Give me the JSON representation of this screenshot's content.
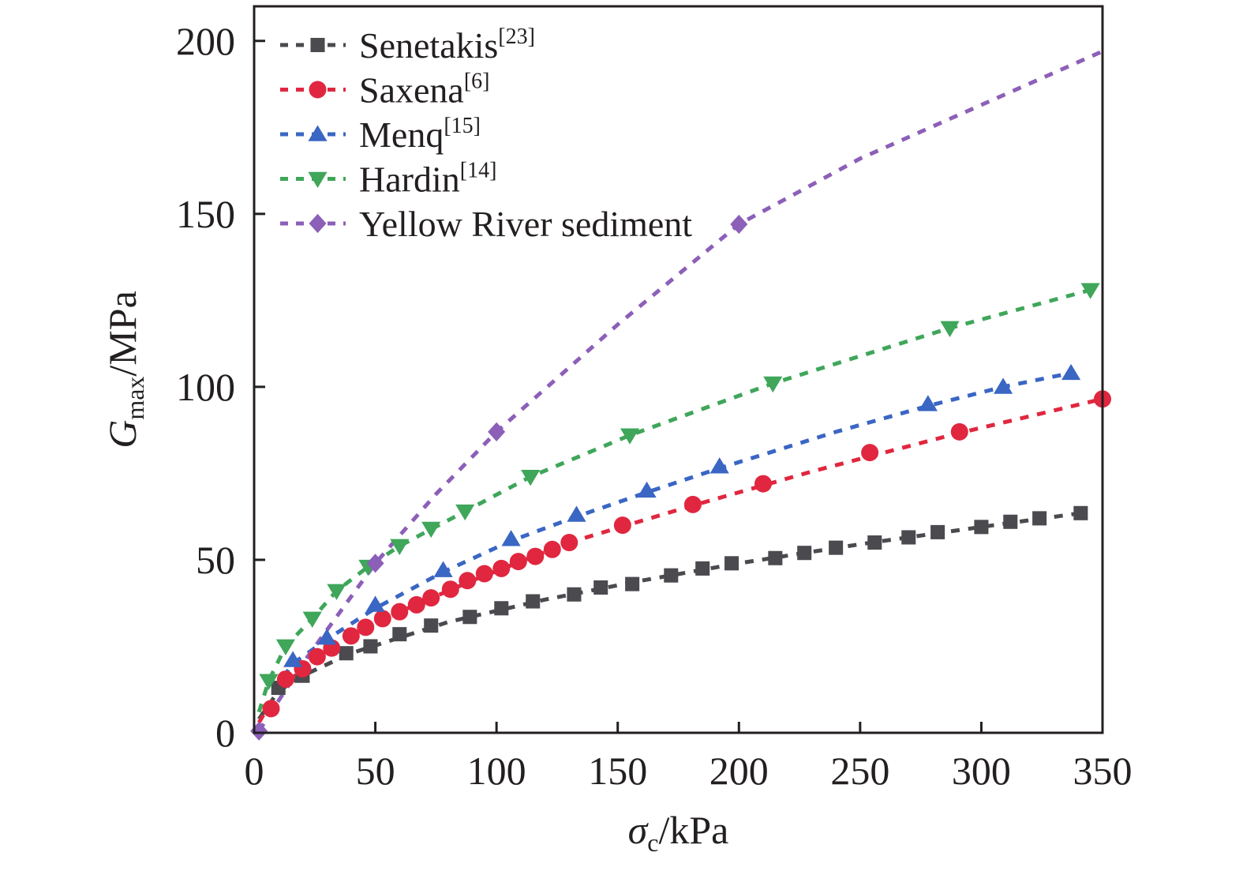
{
  "chart_data": {
    "type": "scatter",
    "title": "",
    "xlabel": {
      "symbol": "σ",
      "subscript": "c",
      "unit": "/kPa"
    },
    "ylabel": {
      "symbol": "G",
      "subscript": "max",
      "unit": "/MPa"
    },
    "xlim": [
      0,
      350
    ],
    "ylim": [
      0,
      210
    ],
    "xticks": [
      "0",
      "50",
      "100",
      "150",
      "200",
      "250",
      "300",
      "350"
    ],
    "yticks": [
      "0",
      "50",
      "100",
      "150",
      "200"
    ],
    "grid": false,
    "legend_position": "top-left",
    "series": [
      {
        "name": "Senetakis",
        "ref": "[23]",
        "color": "#4a4a4f",
        "marker": "square",
        "points": [
          [
            10,
            13
          ],
          [
            20,
            16.5
          ],
          [
            38,
            23
          ],
          [
            48,
            25
          ],
          [
            60,
            28.5
          ],
          [
            73,
            31
          ],
          [
            89,
            33.5
          ],
          [
            102,
            36
          ],
          [
            115,
            38
          ],
          [
            132,
            40
          ],
          [
            143,
            42
          ],
          [
            156,
            43
          ],
          [
            172,
            45.5
          ],
          [
            185,
            47.5
          ],
          [
            197,
            49
          ],
          [
            215,
            50.5
          ],
          [
            227,
            52
          ],
          [
            240,
            53.5
          ],
          [
            256,
            55
          ],
          [
            270,
            56.5
          ],
          [
            282,
            58
          ],
          [
            300,
            59.5
          ],
          [
            312,
            61
          ],
          [
            324,
            62
          ],
          [
            341,
            63.5
          ]
        ],
        "fit": [
          [
            2,
            4
          ],
          [
            10,
            12
          ],
          [
            20,
            16.5
          ],
          [
            40,
            23
          ],
          [
            80,
            32
          ],
          [
            120,
            38.5
          ],
          [
            160,
            44
          ],
          [
            200,
            49
          ],
          [
            250,
            54.5
          ],
          [
            300,
            59.5
          ],
          [
            341,
            63.5
          ]
        ]
      },
      {
        "name": "Saxena",
        "ref": "[6]",
        "color": "#e0273f",
        "marker": "circle",
        "points": [
          [
            7,
            7
          ],
          [
            13,
            15.5
          ],
          [
            20,
            18.5
          ],
          [
            26,
            22
          ],
          [
            32,
            24.5
          ],
          [
            40,
            28
          ],
          [
            46,
            30.5
          ],
          [
            53,
            33
          ],
          [
            60,
            35
          ],
          [
            67,
            37
          ],
          [
            73,
            39
          ],
          [
            81,
            41.5
          ],
          [
            88,
            44
          ],
          [
            95,
            46
          ],
          [
            102,
            47.5
          ],
          [
            109,
            49.5
          ],
          [
            116,
            51
          ],
          [
            123,
            53
          ],
          [
            130,
            55
          ],
          [
            152,
            60
          ],
          [
            181,
            66
          ],
          [
            210,
            72
          ],
          [
            254,
            81
          ],
          [
            291,
            87
          ],
          [
            350,
            96.5
          ]
        ],
        "fit": [
          [
            2,
            3
          ],
          [
            8,
            10
          ],
          [
            15,
            15.5
          ],
          [
            25,
            21
          ],
          [
            40,
            28
          ],
          [
            60,
            35
          ],
          [
            90,
            44
          ],
          [
            130,
            55
          ],
          [
            180,
            65.5
          ],
          [
            230,
            75.5
          ],
          [
            290,
            86.5
          ],
          [
            350,
            96.5
          ]
        ]
      },
      {
        "name": "Menq",
        "ref": "[15]",
        "color": "#3a66c4",
        "marker": "triangle-up",
        "points": [
          [
            16,
            21
          ],
          [
            30,
            27.5
          ],
          [
            50,
            37
          ],
          [
            78,
            47
          ],
          [
            106,
            56
          ],
          [
            133,
            63
          ],
          [
            162,
            70
          ],
          [
            192,
            77
          ],
          [
            278,
            95
          ],
          [
            309,
            100
          ],
          [
            337,
            104
          ]
        ],
        "fit": [
          [
            8,
            12
          ],
          [
            16,
            20
          ],
          [
            30,
            27
          ],
          [
            50,
            36
          ],
          [
            78,
            46.5
          ],
          [
            106,
            55.5
          ],
          [
            133,
            62.5
          ],
          [
            162,
            69.5
          ],
          [
            192,
            76.5
          ],
          [
            240,
            87
          ],
          [
            278,
            94.5
          ],
          [
            309,
            100
          ],
          [
            337,
            104
          ]
        ]
      },
      {
        "name": "Hardin",
        "ref": "[14]",
        "color": "#3fa65a",
        "marker": "triangle-down",
        "points": [
          [
            6,
            15
          ],
          [
            13,
            25
          ],
          [
            24,
            33
          ],
          [
            34,
            41
          ],
          [
            47,
            48
          ],
          [
            60,
            54
          ],
          [
            73,
            59
          ],
          [
            87,
            64
          ],
          [
            114,
            74
          ],
          [
            155,
            86
          ],
          [
            214,
            101
          ],
          [
            287,
            117
          ],
          [
            345,
            128
          ]
        ],
        "fit": [
          [
            2,
            6
          ],
          [
            6,
            15
          ],
          [
            13,
            25
          ],
          [
            24,
            33
          ],
          [
            34,
            41
          ],
          [
            47,
            48
          ],
          [
            60,
            54
          ],
          [
            87,
            64
          ],
          [
            114,
            74
          ],
          [
            155,
            86
          ],
          [
            214,
            101
          ],
          [
            287,
            117
          ],
          [
            345,
            128
          ]
        ]
      },
      {
        "name": "Yellow River sediment",
        "ref": "",
        "color": "#8c5fb8",
        "marker": "diamond",
        "points": [
          [
            2,
            0.5
          ],
          [
            50,
            49
          ],
          [
            100,
            87
          ],
          [
            200,
            147
          ]
        ],
        "fit": [
          [
            2,
            0.5
          ],
          [
            20,
            20
          ],
          [
            50,
            49
          ],
          [
            75,
            69
          ],
          [
            100,
            87
          ],
          [
            150,
            118
          ],
          [
            200,
            147
          ],
          [
            250,
            166
          ],
          [
            300,
            181.5
          ],
          [
            350,
            197
          ]
        ]
      }
    ]
  }
}
